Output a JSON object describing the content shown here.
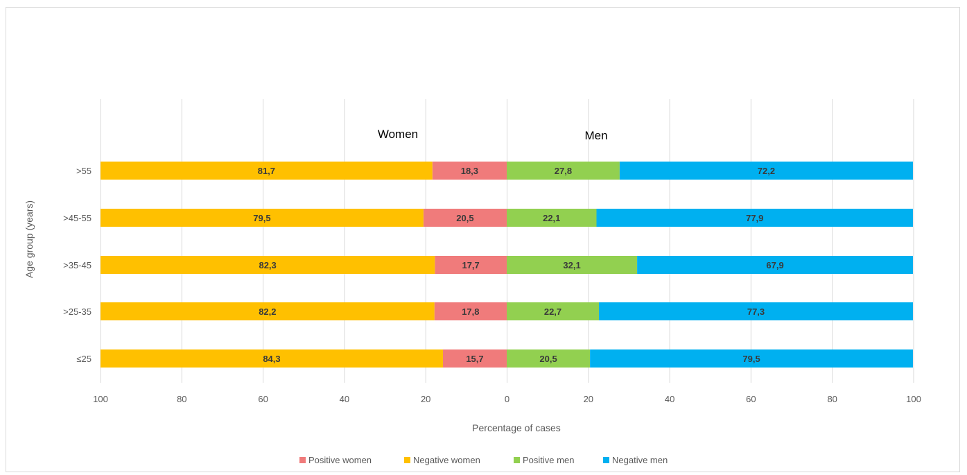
{
  "chart_data": {
    "type": "bar",
    "orientation": "horizontal",
    "layout": "diverging",
    "categories": [
      ">55",
      ">45-55",
      ">35-45",
      ">25-35",
      "≤25"
    ],
    "series": [
      {
        "name": "Positive women",
        "side": "left",
        "color": "#f07b7b",
        "values": [
          18.3,
          20.5,
          17.7,
          17.8,
          15.7
        ],
        "labels": [
          "18,3",
          "20,5",
          "17,7",
          "17,8",
          "15,7"
        ]
      },
      {
        "name": "Negative women",
        "side": "left",
        "color": "#ffc000",
        "values": [
          81.7,
          79.5,
          82.3,
          82.2,
          84.3
        ],
        "labels": [
          "81,7",
          "79,5",
          "82,3",
          "82,2",
          "84,3"
        ]
      },
      {
        "name": "Positive men",
        "side": "right",
        "color": "#92d050",
        "values": [
          27.8,
          22.1,
          32.1,
          22.7,
          20.5
        ],
        "labels": [
          "27,8",
          "22,1",
          "32,1",
          "22,7",
          "20,5"
        ]
      },
      {
        "name": "Negative men",
        "side": "right",
        "color": "#00b0f0",
        "values": [
          72.2,
          77.9,
          67.9,
          77.3,
          79.5
        ],
        "labels": [
          "72,2",
          "77,9",
          "67,9",
          "77,3",
          "79,5"
        ]
      }
    ],
    "panel_labels": {
      "left": "Women",
      "right": "Men"
    },
    "xlabel": "Percentage of cases",
    "ylabel": "Age group (years)",
    "x_ticks": [
      "100",
      "80",
      "60",
      "40",
      "20",
      "0",
      "20",
      "40",
      "60",
      "80",
      "100"
    ],
    "xlim": [
      -100,
      100
    ],
    "grid": "vertical",
    "legend_position": "bottom"
  }
}
